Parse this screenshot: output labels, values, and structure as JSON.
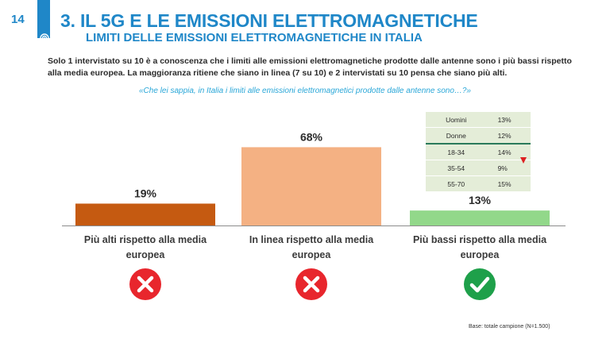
{
  "page_number": "14",
  "header": {
    "title": "3.  IL 5G E LE EMISSIONI ELETTROMAGNETICHE",
    "subtitle": "LIMITI DELLE EMISSIONI ELETTROMAGNETICHE IN ITALIA"
  },
  "summary": "Solo 1 intervistato su 10 è a conoscenza che i limiti alle emissioni elettromagnetiche prodotte dalle antenne sono i più bassi rispetto alla media europea. La maggioranza ritiene che siano in linea (7 su 10) e 2 intervistati su 10 pensa che siano più alti.",
  "question": "«Che lei sappia, in Italia i limiti alle emissioni elettromagnetici prodotte dalle antenne sono…?»",
  "chart_data": {
    "type": "bar",
    "categories": [
      "Più alti rispetto alla media europea",
      "In linea rispetto alla media europea",
      "Più bassi rispetto alla media europea"
    ],
    "values": [
      19,
      68,
      13
    ],
    "data_labels": [
      "19%",
      "68%",
      "13%"
    ],
    "unit": "%",
    "ylim": [
      0,
      100
    ],
    "grid": false,
    "legend": "none",
    "colors": [
      "#c55a11",
      "#f4b183",
      "#92d88a"
    ],
    "inset_table": {
      "rows": [
        {
          "label": "Uomini",
          "value": "13%"
        },
        {
          "label": "Donne",
          "value": "12%"
        },
        {
          "label": "18-34",
          "value": "14%"
        },
        {
          "label": "35-54",
          "value": "9%",
          "marker": "down-arrow"
        },
        {
          "label": "55-70",
          "value": "15%"
        }
      ]
    }
  },
  "status_icons": [
    "close-icon",
    "close-icon",
    "check-icon"
  ],
  "status_colors": {
    "wrong": "#e8262d",
    "right": "#1ea04a"
  },
  "base_note": "Base: totale campione (N=1.500)"
}
